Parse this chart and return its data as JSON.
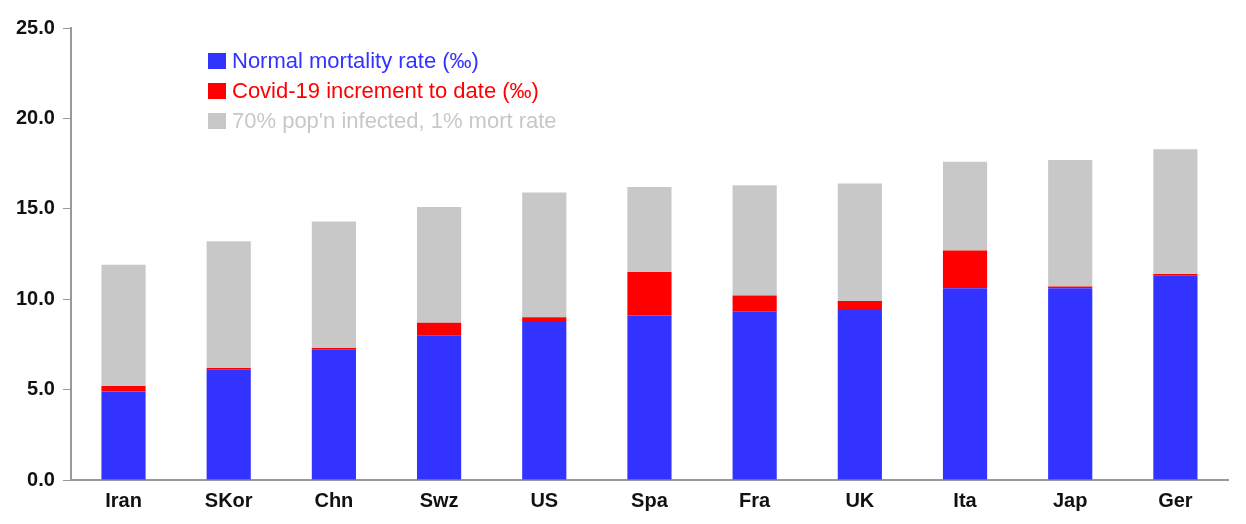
{
  "chart_data": {
    "type": "bar",
    "stacked": true,
    "legend": "top left",
    "grid": false,
    "categories": [
      "Iran",
      "SKor",
      "Chn",
      "Swz",
      "US",
      "Spa",
      "Fra",
      "UK",
      "Ita",
      "Jap",
      "Ger"
    ],
    "series": [
      {
        "name": "Normal mortality rate (‰)",
        "color": "#3333ff",
        "values": [
          4.9,
          6.1,
          7.2,
          8.0,
          8.8,
          9.1,
          9.3,
          9.4,
          10.6,
          10.6,
          11.3
        ]
      },
      {
        "name": "Covid-19 increment to date (‰)",
        "color": "#ff0000",
        "values": [
          0.3,
          0.1,
          0.1,
          0.7,
          0.2,
          2.4,
          0.9,
          0.5,
          2.1,
          0.1,
          0.1
        ]
      },
      {
        "name": "70% pop'n infected, 1% mort rate",
        "color": "#c8c8c8",
        "values": [
          6.7,
          7.0,
          7.0,
          6.4,
          6.9,
          4.7,
          6.1,
          6.5,
          4.9,
          7.0,
          6.9
        ]
      }
    ],
    "ylim": [
      0,
      25
    ],
    "yticks": [
      {
        "value": 0,
        "label": "0.0"
      },
      {
        "value": 5,
        "label": "5.0"
      },
      {
        "value": 10,
        "label": "10.0"
      },
      {
        "value": 15,
        "label": "15.0"
      },
      {
        "value": 20,
        "label": "20.0"
      },
      {
        "value": 25,
        "label": "25.0"
      }
    ]
  }
}
